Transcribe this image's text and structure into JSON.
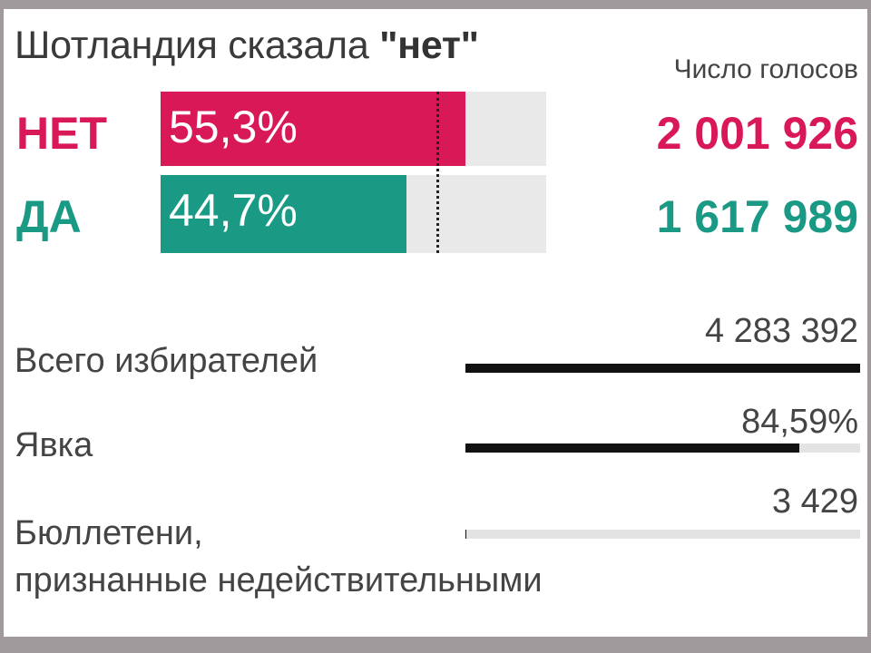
{
  "colors": {
    "no": "#d91858",
    "yes": "#1a9a85",
    "track": "#e9e9e9",
    "stat_bar": "#111111"
  },
  "chart_data": {
    "type": "bar",
    "title_prefix": "Шотландия сказала ",
    "title_accent": "\"нет\"",
    "value_header": "Число голосов",
    "categories": [
      "НЕТ",
      "ДА"
    ],
    "values": [
      55.3,
      44.7
    ],
    "value_labels": [
      "55,3%",
      "44,7%"
    ],
    "votes": [
      "2 001 926",
      "1 617 989"
    ],
    "xlim": [
      0,
      70
    ],
    "reference_line": 50
  },
  "stats": [
    {
      "label": "Всего избирателей",
      "value": "4 283 392",
      "fraction": 1.0
    },
    {
      "label": "Явка",
      "value": "84,59%",
      "fraction": 0.8459
    },
    {
      "label_line1": "Бюллетени,",
      "label_line2": "признанные недействительными",
      "value": "3 429",
      "fraction": 0.0008
    }
  ]
}
